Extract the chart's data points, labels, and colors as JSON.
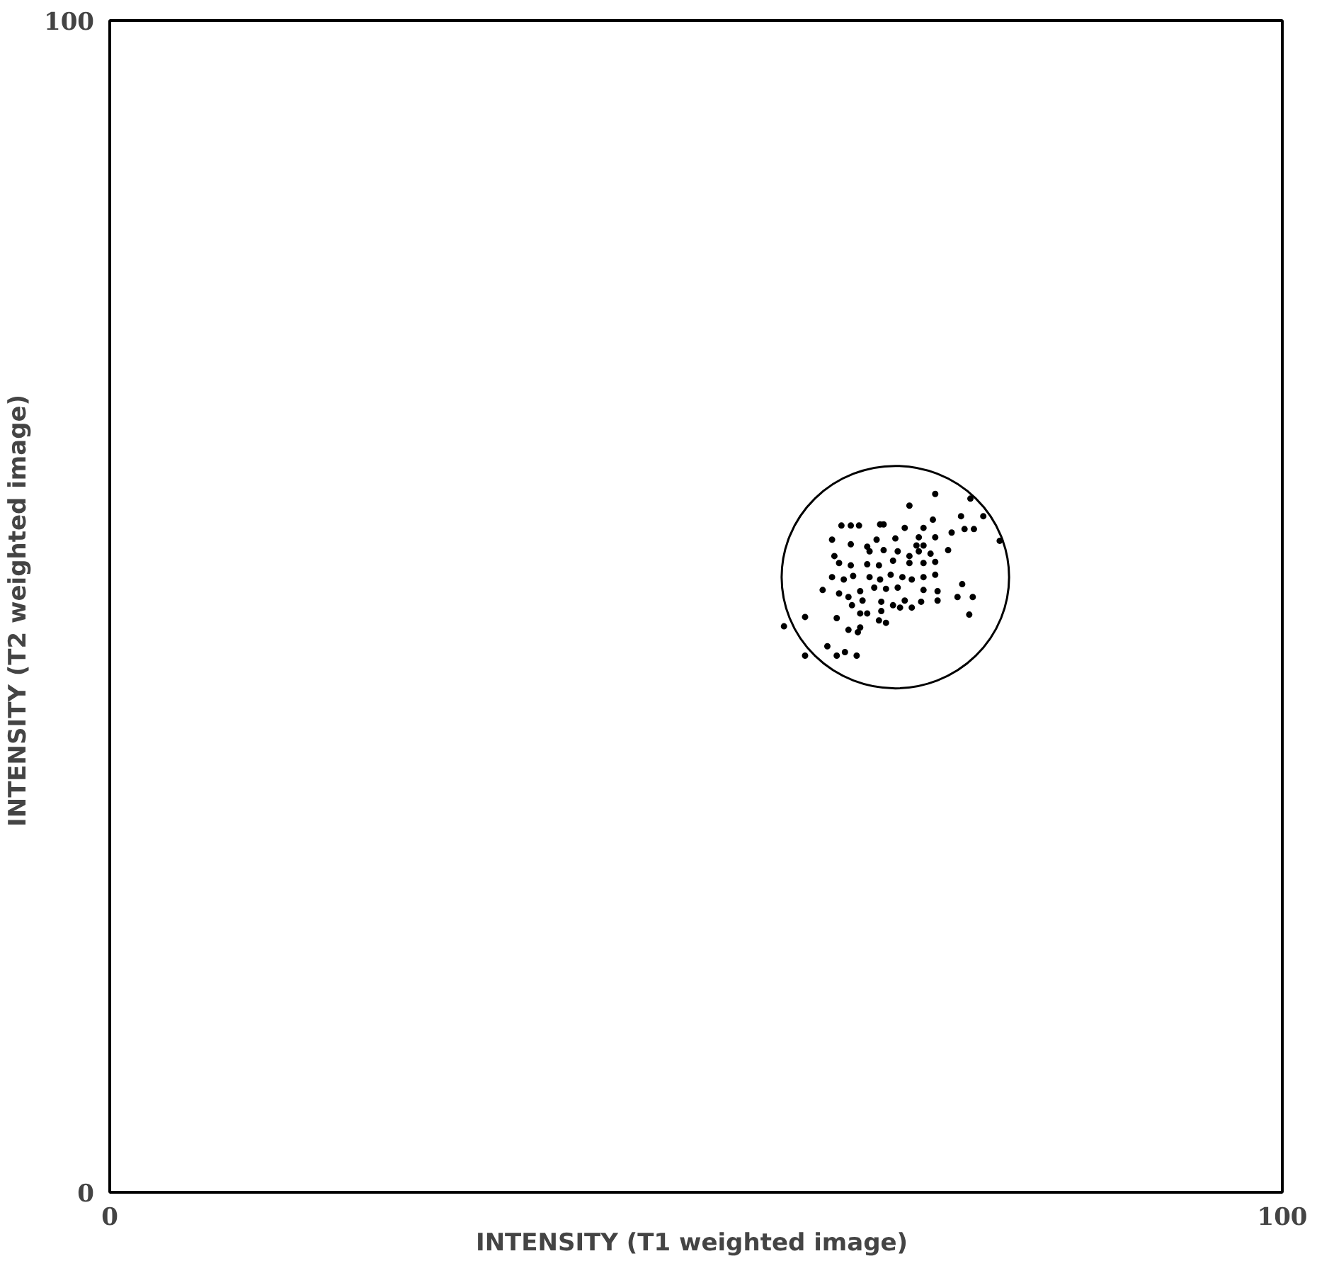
{
  "chart_data": {
    "type": "scatter",
    "xlabel": "INTENSITY  (T1 weighted image)",
    "ylabel": "INTENSITY  (T2 weighted image)",
    "xlim": [
      0,
      100
    ],
    "ylim": [
      0,
      100
    ],
    "xticks": [
      0,
      100
    ],
    "yticks": [
      0,
      100
    ],
    "marker": "circle",
    "series": [
      {
        "color": "#000000",
        "x": [
          70.4,
          73.4,
          68.2,
          72.6,
          74.5,
          75.9,
          62.4,
          63.2,
          63.9,
          65.7,
          66.0,
          70.2,
          67.8,
          69.4,
          72.9,
          73.7,
          71.8,
          61.6,
          65.4,
          67.0,
          69.0,
          70.4,
          63.2,
          64.6,
          68.8,
          69.4,
          71.5,
          61.8,
          64.8,
          66.0,
          67.2,
          68.2,
          69.0,
          70.0,
          62.2,
          63.2,
          64.6,
          65.6,
          66.8,
          68.2,
          69.4,
          70.4,
          61.6,
          62.6,
          63.4,
          64.8,
          65.7,
          66.6,
          67.6,
          68.4,
          69.4,
          70.4,
          72.7,
          60.8,
          62.2,
          64.0,
          65.2,
          66.2,
          67.2,
          69.4,
          70.6,
          72.3,
          73.6,
          63.0,
          63.3,
          64.2,
          65.8,
          66.8,
          67.8,
          69.2,
          70.6,
          64.0,
          64.6,
          65.8,
          67.4,
          68.4,
          73.3,
          59.3,
          62.0,
          65.6,
          66.2,
          57.5,
          63.0,
          64.0,
          63.8,
          61.2,
          62.0,
          62.7,
          63.7,
          59.3
        ],
        "values": [
          59.6,
          59.2,
          58.6,
          57.7,
          57.7,
          55.6,
          56.9,
          56.9,
          56.9,
          57.0,
          57.0,
          57.4,
          56.7,
          56.7,
          56.6,
          56.6,
          56.3,
          55.7,
          55.7,
          55.8,
          55.9,
          55.9,
          55.3,
          55.1,
          55.2,
          55.2,
          54.8,
          54.3,
          54.7,
          54.8,
          54.7,
          54.3,
          54.7,
          54.5,
          53.7,
          53.5,
          53.6,
          53.5,
          53.9,
          53.7,
          53.7,
          53.8,
          52.5,
          52.3,
          52.6,
          52.5,
          52.3,
          52.7,
          52.5,
          52.3,
          52.5,
          52.7,
          51.9,
          51.4,
          51.1,
          51.3,
          51.6,
          51.5,
          51.6,
          51.4,
          51.3,
          50.8,
          50.8,
          50.8,
          50.1,
          50.5,
          50.4,
          50.1,
          50.5,
          50.4,
          50.5,
          49.4,
          49.4,
          49.6,
          49.9,
          49.9,
          49.3,
          49.1,
          49.0,
          48.8,
          48.6,
          48.3,
          48.0,
          48.2,
          47.8,
          46.6,
          45.8,
          46.1,
          45.8,
          45.8
        ]
      }
    ]
  }
}
